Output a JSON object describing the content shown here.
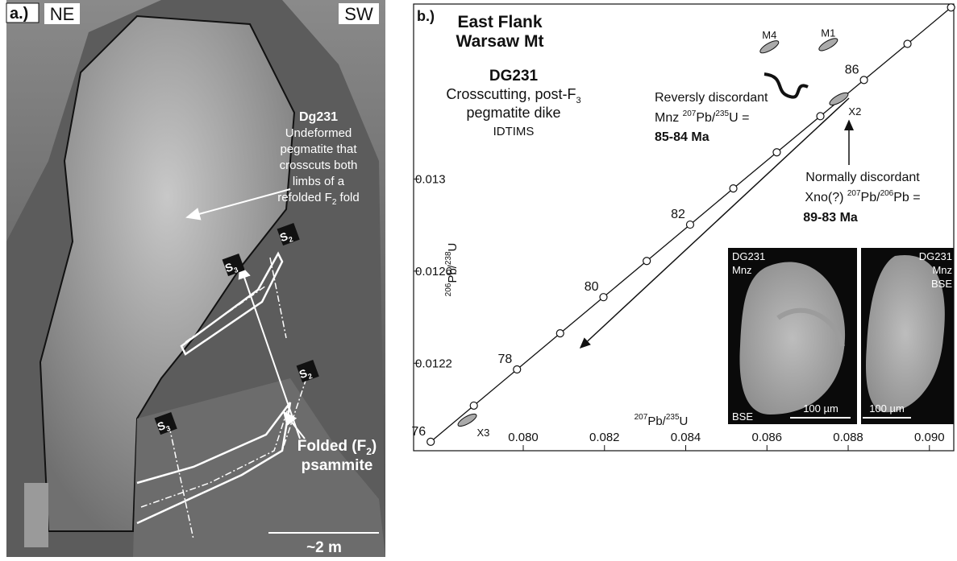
{
  "panel_a": {
    "label": "a.)",
    "left_direction": "NE",
    "right_direction": "SW",
    "sample": "Dg231",
    "description_lines": [
      "Undeformed",
      "pegmatite that",
      "crosscuts both",
      "limbs of a"
    ],
    "description_last": {
      "text": "refolded F",
      "sub": "2",
      "tail": " fold"
    },
    "foliation_tags": [
      {
        "main": "S",
        "sub": "3"
      },
      {
        "main": "S",
        "sub": "2"
      },
      {
        "main": "S",
        "sub": "2"
      },
      {
        "main": "S",
        "sub": "3"
      }
    ],
    "fold_label": {
      "text": "Folded (F",
      "sub": "2",
      "tail": ")",
      "line2": "psammite"
    },
    "scale": "~2 m"
  },
  "chart_data": {
    "type": "concordia",
    "label": "b.)",
    "title_lines": [
      "East Flank",
      "Warsaw Mt"
    ],
    "sample": "DG231",
    "subtitle": {
      "text": "Crosscutting, post-F",
      "sub": "3",
      "line2": "pegmatite dike",
      "line3": "IDTIMS"
    },
    "x_label": {
      "sup1": "207",
      "mid": "Pb/",
      "sup2": "235",
      "end": "U"
    },
    "y_label": {
      "sup1": "206",
      "mid": "Pb/",
      "sup2": "238",
      "end": "U"
    },
    "xlim": [
      0.0773,
      0.0906
    ],
    "ylim": [
      0.01182,
      0.01376
    ],
    "xticks": [
      {
        "value": 0.08,
        "label": "0.080"
      },
      {
        "value": 0.082,
        "label": "0.082"
      },
      {
        "value": 0.084,
        "label": "0.084"
      },
      {
        "value": 0.086,
        "label": "0.086"
      },
      {
        "value": 0.088,
        "label": "0.088"
      },
      {
        "value": 0.09,
        "label": "0.090"
      }
    ],
    "yticks": [
      0.0122,
      0.0126,
      0.013
    ],
    "concordia": {
      "x": [
        0.077721,
        0.078783,
        0.079846,
        0.080908,
        0.081975,
        0.08304,
        0.084108,
        0.085172,
        0.086242,
        0.087315,
        0.088388,
        0.08946,
        0.090533
      ],
      "y": [
        0.011859,
        0.012016,
        0.012173,
        0.01233,
        0.012487,
        0.012644,
        0.012802,
        0.012959,
        0.013116,
        0.013273,
        0.01343,
        0.013587,
        0.013745
      ],
      "labels": [
        76,
        null,
        78,
        null,
        80,
        null,
        82,
        null,
        null,
        null,
        86,
        null,
        null
      ]
    },
    "analyses": [
      {
        "name": "M4",
        "x": 0.08606,
        "y": 0.013574
      },
      {
        "name": "M1",
        "x": 0.08751,
        "y": 0.013584
      },
      {
        "name": "X2",
        "x": 0.08777,
        "y": 0.013348
      },
      {
        "name": "X3",
        "x": 0.07862,
        "y": 0.011953
      }
    ],
    "reverse_note": {
      "line1": "Reversly discordant",
      "pre": "Mnz ",
      "sup1": "207",
      "mid": "Pb/",
      "sup2": "235",
      "end": "U =",
      "age": "85-84 Ma"
    },
    "normal_note": {
      "line1": "Normally discordant",
      "pre": "Xno(?) ",
      "sup1": "207",
      "mid": "Pb/",
      "sup2": "206",
      "end": "Pb =",
      "age": "89-83 Ma"
    },
    "insets": [
      {
        "top1": "DG231",
        "top2": "Mnz",
        "bottom": "BSE",
        "scale": "100 µm"
      },
      {
        "top1": "DG231",
        "top2": "Mnz",
        "side": "BSE",
        "scale": "100 µm"
      }
    ]
  }
}
